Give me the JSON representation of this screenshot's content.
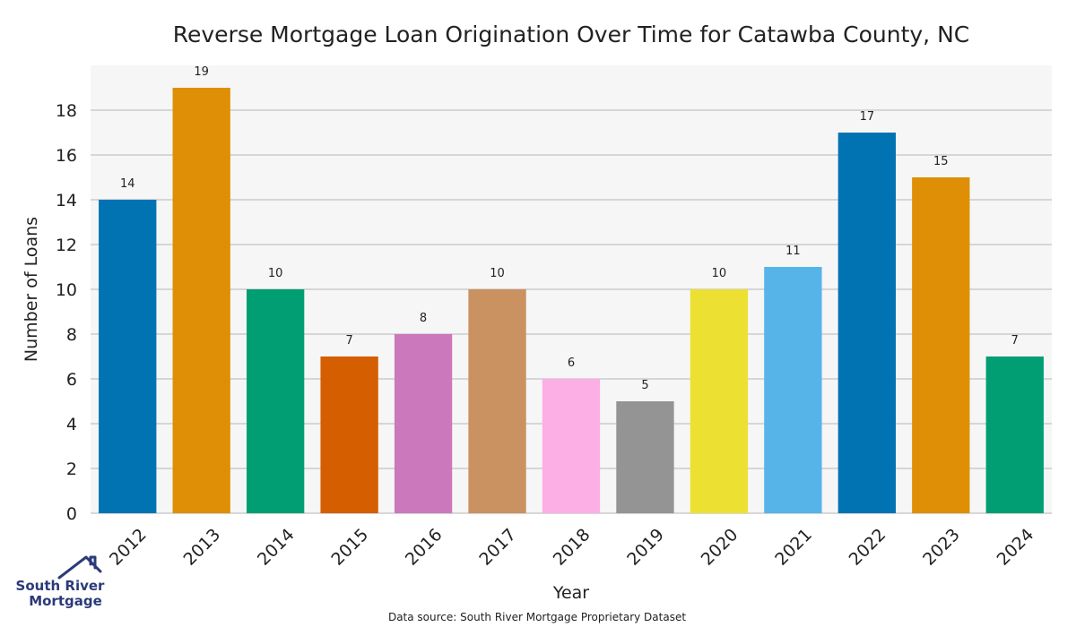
{
  "chart_data": {
    "type": "bar",
    "title": "Reverse Mortgage Loan Origination Over Time for Catawba County, NC",
    "xlabel": "Year",
    "ylabel": "Number of Loans",
    "categories": [
      "2012",
      "2013",
      "2014",
      "2015",
      "2016",
      "2017",
      "2018",
      "2019",
      "2020",
      "2021",
      "2022",
      "2023",
      "2024"
    ],
    "values": [
      14,
      19,
      10,
      7,
      8,
      10,
      6,
      5,
      10,
      11,
      17,
      15,
      7
    ],
    "colors": [
      "#0173b2",
      "#de8f05",
      "#029e73",
      "#d55e00",
      "#cc78bc",
      "#ca9161",
      "#fbafe4",
      "#949494",
      "#ece133",
      "#56b4e9",
      "#0173b2",
      "#de8f05",
      "#029e73"
    ],
    "ylim": [
      0,
      20
    ],
    "yticks": [
      0,
      2,
      4,
      6,
      8,
      10,
      12,
      14,
      16,
      18
    ],
    "grid": true,
    "legend": "none",
    "source_note": "Data source: South River Mortgage Proprietary Dataset"
  },
  "logo": {
    "line1": "South River",
    "line2": "Mortgage",
    "icon": "house-outline-icon",
    "color": "#2b3a78"
  }
}
